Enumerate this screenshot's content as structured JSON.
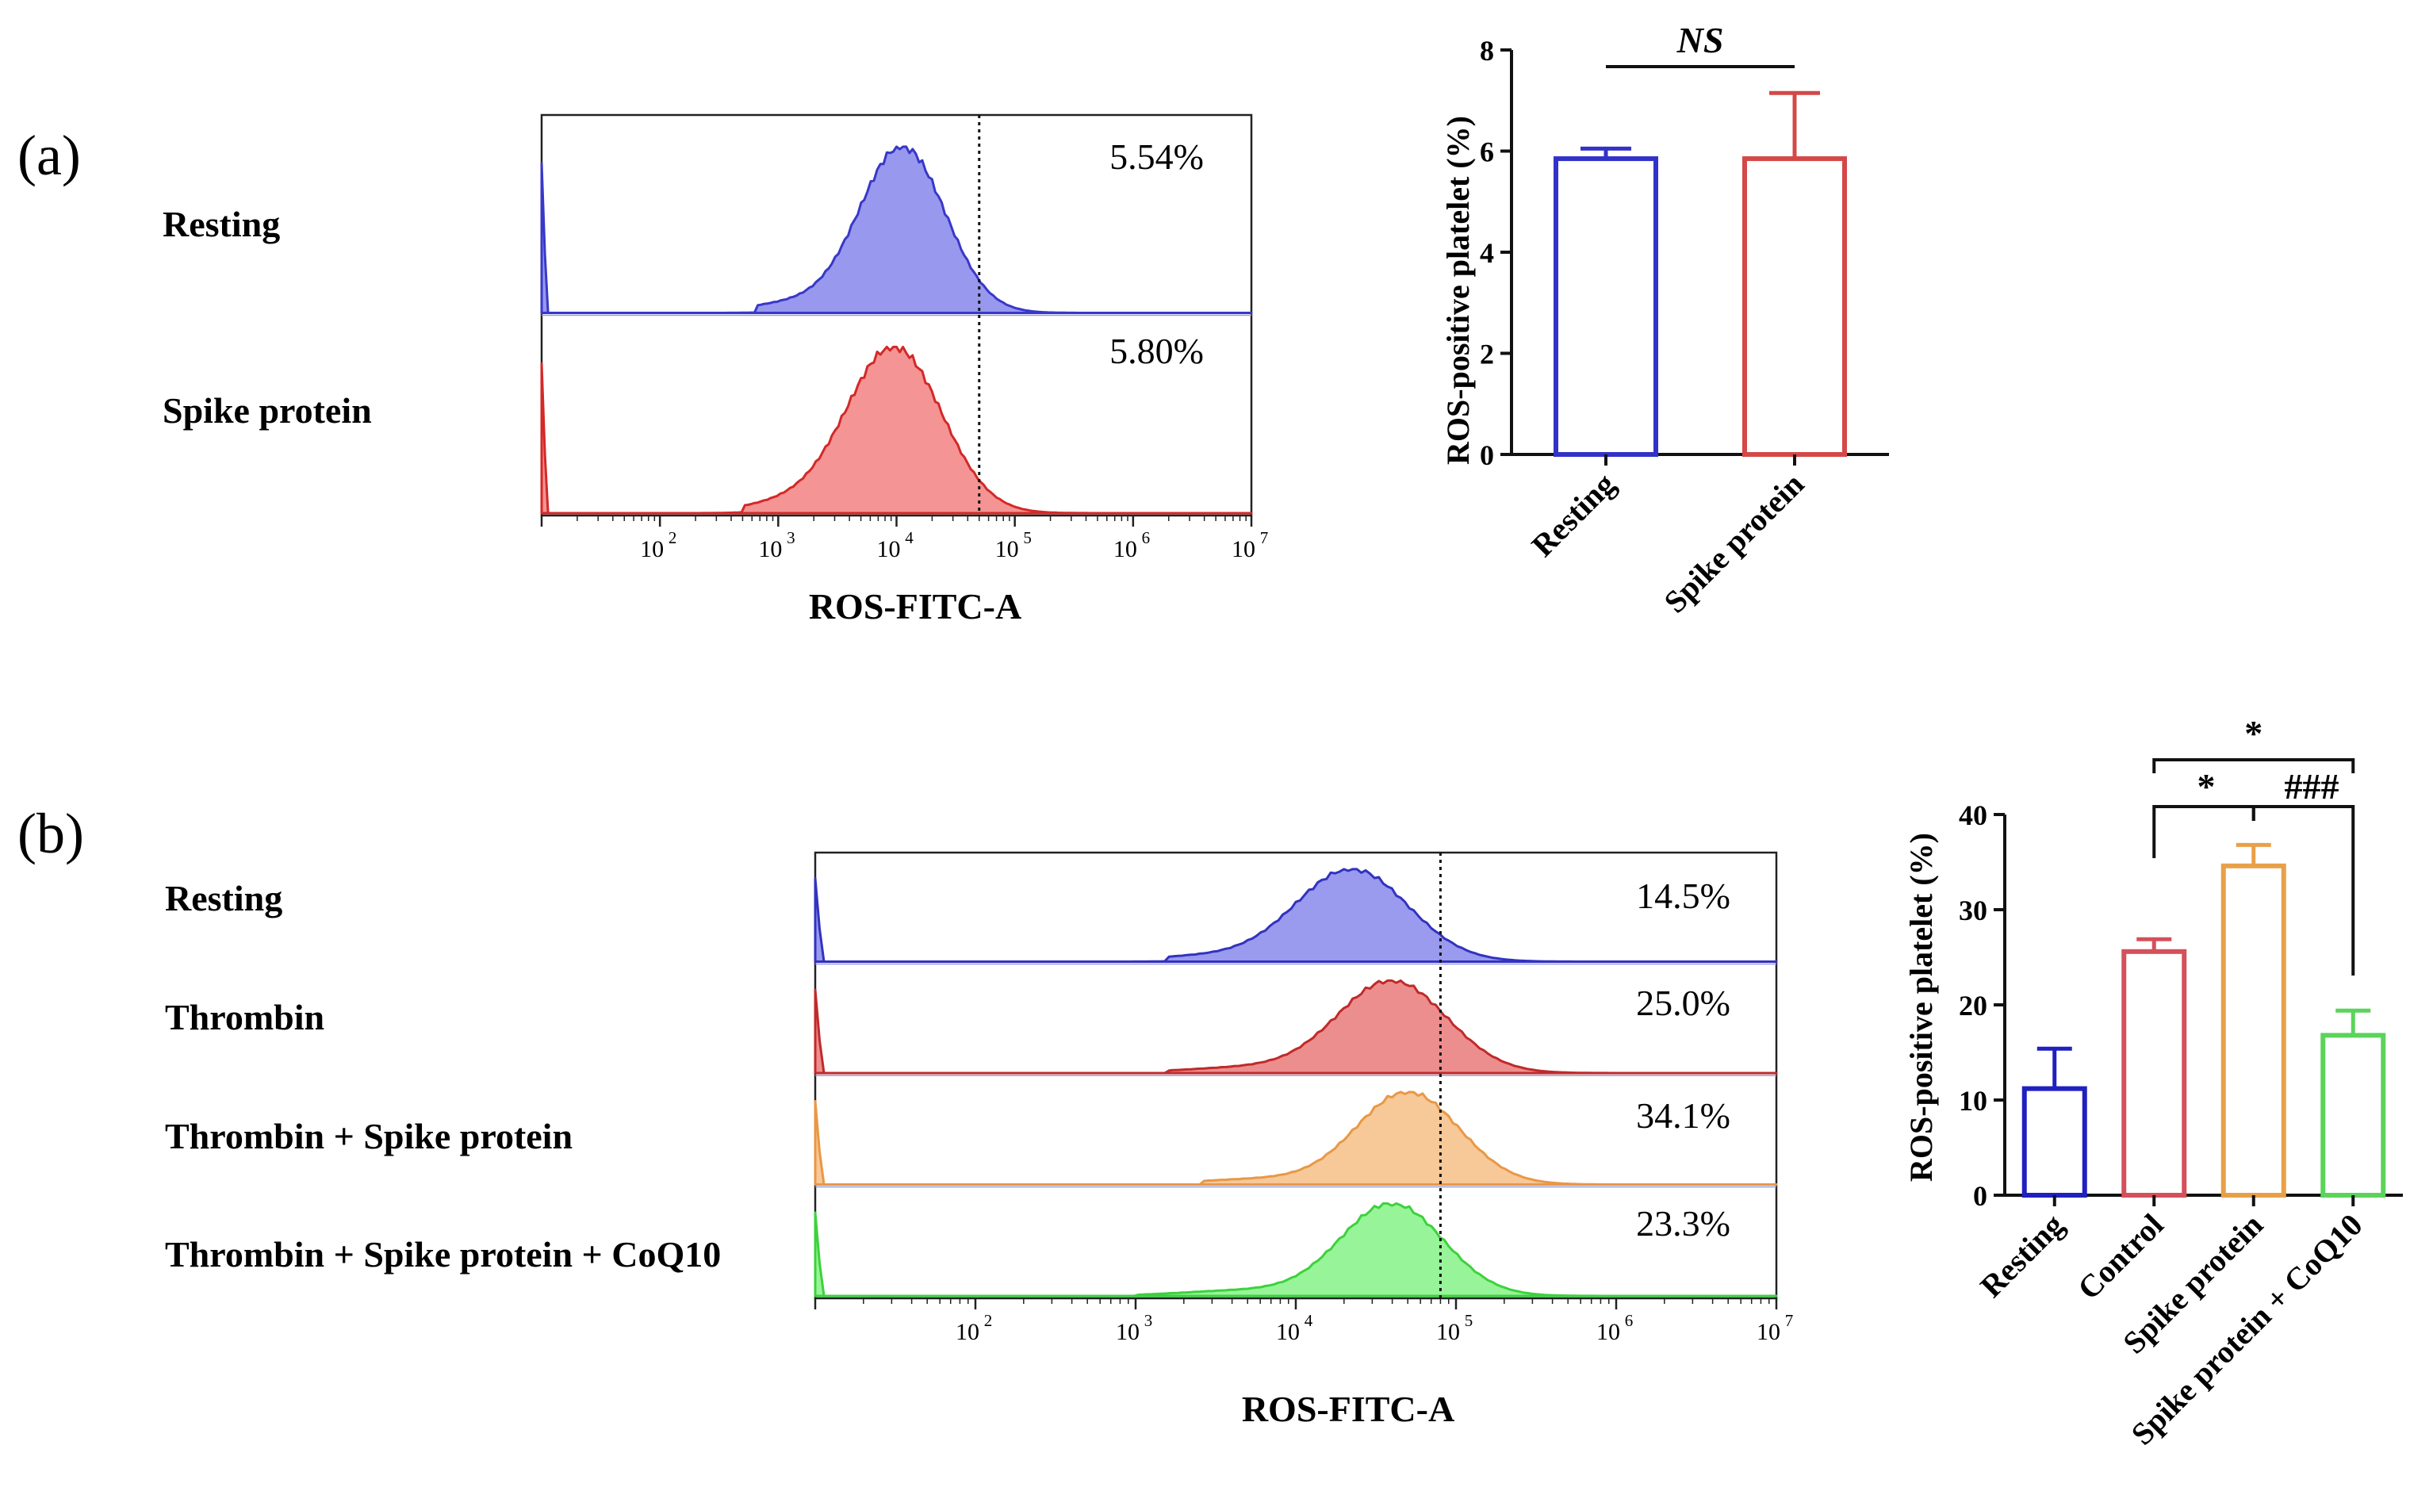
{
  "panels": {
    "a": {
      "letter": "(a)",
      "histogram": {
        "x_title": "ROS-FITC-A",
        "x_scale": "log",
        "x_range": [
          10,
          10000000
        ],
        "tick_bases": [
          "10",
          "10",
          "10",
          "10",
          "10",
          "10"
        ],
        "tick_exponents": [
          "2",
          "3",
          "4",
          "5",
          "6",
          "7"
        ],
        "gate_threshold": 50000,
        "tracks": [
          {
            "label": "Resting",
            "percent": "5.54%",
            "color": "#3838c8",
            "fill": "#9898ee",
            "peak_log": 4.05,
            "width_log": 0.36,
            "spread_low": 2.8
          },
          {
            "label": "Spike protein",
            "percent": "5.80%",
            "color": "#d42828",
            "fill": "#f49494",
            "peak_log": 3.98,
            "width_log": 0.4,
            "spread_low": 2.7
          }
        ]
      },
      "bar": {
        "y_label": "ROS-positive platelet (%)",
        "y_ticks": [
          "0",
          "2",
          "4",
          "6",
          "8"
        ],
        "ylim": [
          0,
          8
        ],
        "categories": [
          "Resting",
          "Spike protein"
        ],
        "values": [
          5.85,
          5.85
        ],
        "errors": [
          0.2,
          1.3
        ],
        "colors": [
          "#3232c8",
          "#d44848"
        ],
        "significance": [
          {
            "from": 0,
            "to": 1,
            "label": "NS"
          }
        ]
      }
    },
    "b": {
      "letter": "(b)",
      "histogram": {
        "x_title": "ROS-FITC-A",
        "x_scale": "log",
        "x_range": [
          10,
          10000000
        ],
        "tick_bases": [
          "10",
          "10",
          "10",
          "10",
          "10",
          "10"
        ],
        "tick_exponents": [
          "2",
          "3",
          "4",
          "5",
          "6",
          "7"
        ],
        "gate_threshold": 80000,
        "tracks": [
          {
            "label": "Resting",
            "percent": "14.5%",
            "color": "#3232c0",
            "fill": "#9a9aee",
            "peak_log": 4.35,
            "width_log": 0.35,
            "spread_low": 3.2
          },
          {
            "label": "Thrombin",
            "percent": "25.0%",
            "color": "#c02a2a",
            "fill": "#ec8e8e",
            "peak_log": 4.6,
            "width_log": 0.34,
            "spread_low": 3.2
          },
          {
            "label": "Thrombin + Spike protein",
            "percent": "34.1%",
            "color": "#e89846",
            "fill": "#f7c898",
            "peak_log": 4.7,
            "width_log": 0.32,
            "spread_low": 3.4
          },
          {
            "label": "Thrombin + Spike protein + CoQ10",
            "percent": "23.3%",
            "color": "#3cd23c",
            "fill": "#98f498",
            "peak_log": 4.6,
            "width_log": 0.32,
            "spread_low": 3.0
          }
        ]
      },
      "bar": {
        "y_label": "ROS-positive platelet (%)",
        "y_ticks": [
          "0",
          "10",
          "20",
          "30",
          "40"
        ],
        "ylim": [
          0,
          40
        ],
        "categories": [
          "Resting",
          "Control",
          "Spike protein",
          "Spike protein + CoQ10"
        ],
        "values": [
          11.2,
          25.6,
          34.6,
          16.8
        ],
        "errors": [
          4.2,
          1.3,
          2.2,
          2.6
        ],
        "colors": [
          "#2020c0",
          "#d4505a",
          "#e8a048",
          "#5ad45a"
        ],
        "significance": [
          {
            "from": 1,
            "to": 3,
            "label": "*"
          },
          {
            "from": 1,
            "to": 2,
            "label": "*"
          },
          {
            "from": 2,
            "to": 3,
            "label": "###"
          }
        ]
      }
    }
  }
}
